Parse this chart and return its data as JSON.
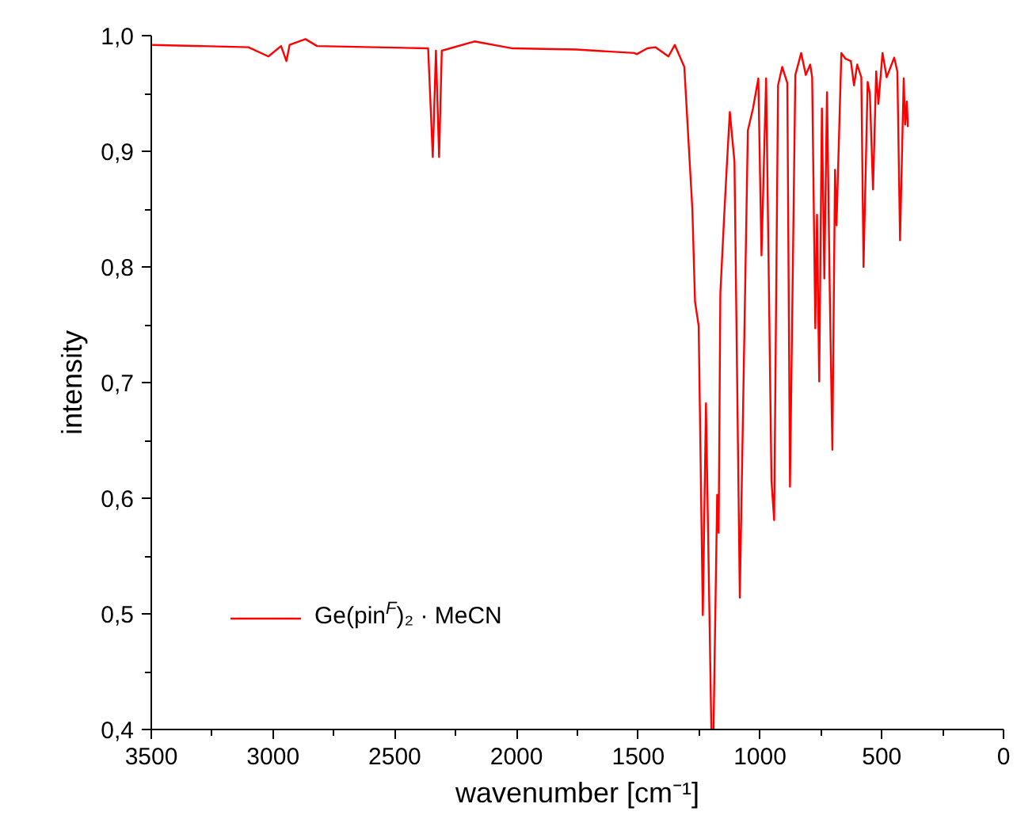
{
  "chart_data": {
    "type": "line",
    "xlabel": "wavenumber [cm⁻¹]",
    "ylabel": "intensity",
    "xlim": [
      3500,
      0
    ],
    "ylim": [
      0.4,
      1.0
    ],
    "xticks": [
      3500,
      3000,
      2500,
      2000,
      1500,
      1000,
      500,
      0
    ],
    "yticks": [
      {
        "value": 0.4,
        "label": "0,4"
      },
      {
        "value": 0.5,
        "label": "0,5"
      },
      {
        "value": 0.6,
        "label": "0,6"
      },
      {
        "value": 0.7,
        "label": "0,7"
      },
      {
        "value": 0.8,
        "label": "0,8"
      },
      {
        "value": 0.9,
        "label": "0,9"
      },
      {
        "value": 1.0,
        "label": "1,0"
      }
    ],
    "grid": false,
    "legend": "bottom left",
    "marker": "none",
    "line_style": "solid",
    "series": [
      {
        "name": "Ge(pin$^{F}$)₂ · MeCN",
        "color": "#ff0000",
        "x": [
          3496,
          3101,
          3019,
          2967,
          2945,
          2932,
          2867,
          2819,
          2363,
          2344,
          2331,
          2318,
          2307,
          2173,
          2016,
          1756,
          1517,
          1506,
          1463,
          1430,
          1376,
          1350,
          1311,
          1278,
          1267,
          1252,
          1235,
          1222,
          1200,
          1191,
          1176,
          1170,
          1163,
          1148,
          1135,
          1124,
          1105,
          1083,
          1050,
          1029,
          1007,
          994,
          975,
          953,
          942,
          926,
          909,
          888,
          877,
          855,
          831,
          812,
          794,
          786,
          773,
          766,
          757,
          746,
          736,
          725,
          714,
          703,
          692,
          686,
          666,
          649,
          627,
          614,
          601,
          584,
          575,
          558,
          549,
          536,
          523,
          514,
          497,
          480,
          449,
          436,
          425,
          410,
          404,
          397,
          393
        ],
        "values": [
          0.992,
          0.99,
          0.982,
          0.991,
          0.978,
          0.992,
          0.997,
          0.991,
          0.989,
          0.895,
          0.987,
          0.895,
          0.987,
          0.995,
          0.989,
          0.988,
          0.985,
          0.984,
          0.989,
          0.99,
          0.982,
          0.992,
          0.973,
          0.85,
          0.77,
          0.749,
          0.499,
          0.682,
          0.4,
          0.4,
          0.603,
          0.57,
          0.777,
          0.841,
          0.893,
          0.934,
          0.891,
          0.514,
          0.918,
          0.937,
          0.963,
          0.81,
          0.963,
          0.615,
          0.581,
          0.957,
          0.973,
          0.959,
          0.61,
          0.966,
          0.985,
          0.966,
          0.975,
          0.964,
          0.747,
          0.845,
          0.701,
          0.937,
          0.79,
          0.951,
          0.784,
          0.642,
          0.884,
          0.836,
          0.985,
          0.98,
          0.978,
          0.957,
          0.975,
          0.964,
          0.8,
          0.96,
          0.95,
          0.867,
          0.969,
          0.941,
          0.985,
          0.964,
          0.981,
          0.969,
          0.823,
          0.963,
          0.923,
          0.943,
          0.921
        ]
      }
    ]
  }
}
